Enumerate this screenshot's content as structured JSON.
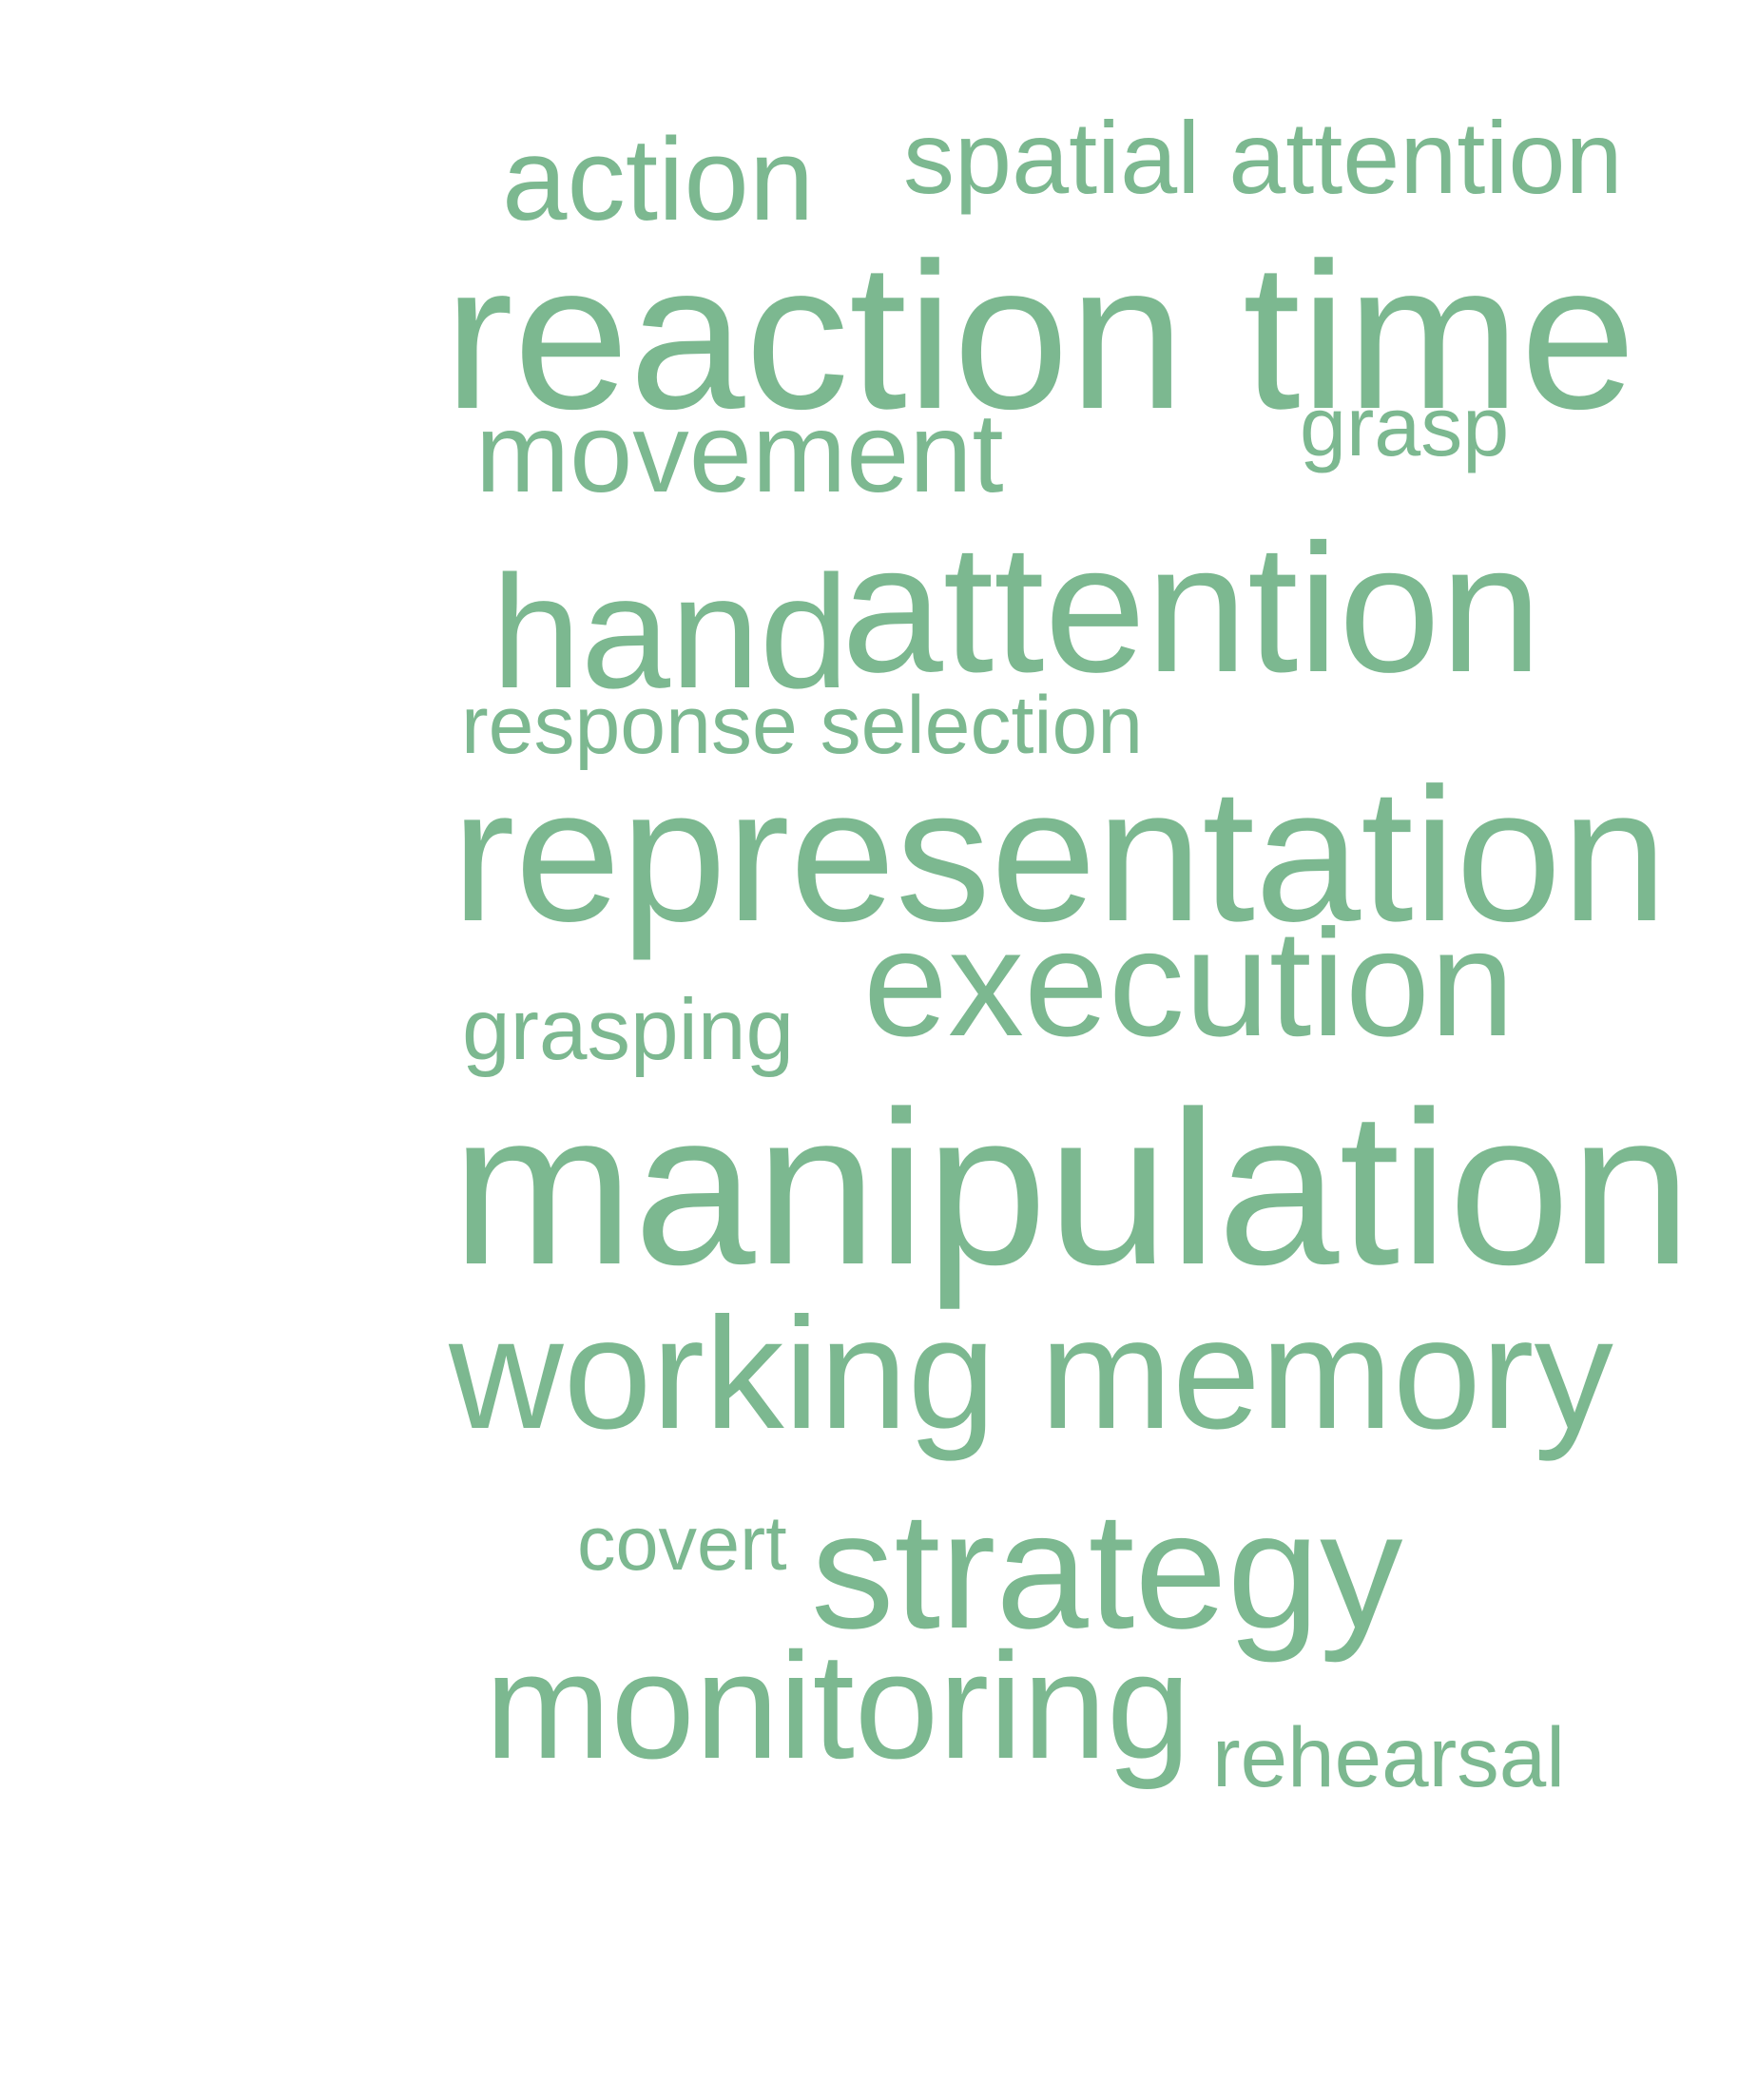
{
  "theme": {
    "background": "#ffffff",
    "word_color": "#7cb890"
  },
  "words": {
    "action": "action",
    "spatial_attention": "spatial attention",
    "reaction_time": "reaction time",
    "movement": "movement",
    "grasp": "grasp",
    "hand": "hand",
    "attention": "attention",
    "response_selection": "response selection",
    "representation": "representation",
    "execution": "execution",
    "grasping": "grasping",
    "manipulation": "manipulation",
    "working_memory": "working memory",
    "covert": "covert",
    "strategy": "strategy",
    "monitoring": "monitoring",
    "rehearsal": "rehearsal"
  }
}
